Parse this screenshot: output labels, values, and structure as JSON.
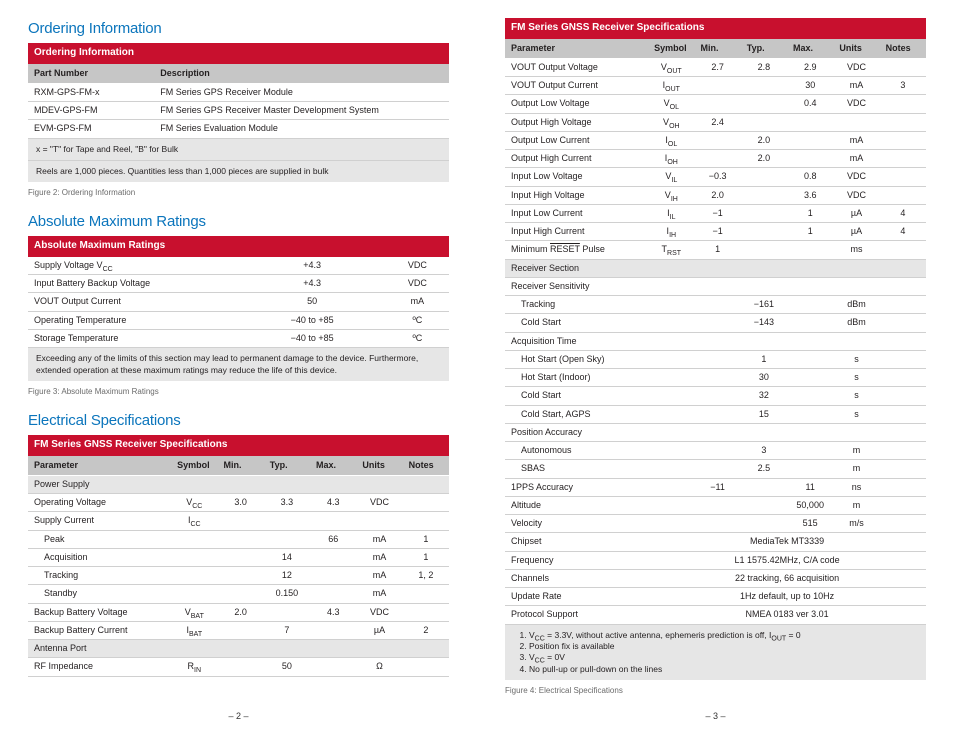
{
  "colors": {
    "heading": "#0b75bc",
    "banner_bg": "#c8102e",
    "banner_fg": "#ffffff",
    "headrow_bg": "#c6c6c6",
    "section_bg": "#e6e6e6",
    "row_border": "#d0d0d0",
    "text": "#231f20",
    "figcap": "#6b6b6b"
  },
  "typography": {
    "heading_fontsize": 15,
    "banner_fontsize": 10,
    "body_fontsize": 9,
    "figcap_fontsize": 8
  },
  "page2": {
    "ordering": {
      "heading": "Ordering Information",
      "banner": "Ordering Information",
      "columns": [
        "Part Number",
        "Description"
      ],
      "col_widths_pct": [
        30,
        70
      ],
      "rows": [
        [
          "RXM-GPS-FM-x",
          "FM Series GPS Receiver Module"
        ],
        [
          "MDEV-GPS-FM",
          "FM Series GPS Receiver Master Development System"
        ],
        [
          "EVM-GPS-FM",
          "FM Series Evaluation Module"
        ]
      ],
      "notes": [
        "x = \"T\" for Tape and Reel, \"B\" for Bulk",
        "Reels are 1,000 pieces. Quantities less than 1,000 pieces are supplied in bulk"
      ],
      "caption": "Figure 2: Ordering Information"
    },
    "amr": {
      "heading": "Absolute Maximum Ratings",
      "banner": "Absolute Maximum Ratings",
      "col_widths_pct": [
        50,
        35,
        15
      ],
      "rows": [
        {
          "p": "Supply Voltage V",
          "sub": "CC",
          "v": "+4.3",
          "u": "VDC"
        },
        {
          "p": "Input Battery Backup Voltage",
          "sub": "",
          "v": "+4.3",
          "u": "VDC"
        },
        {
          "p": "VOUT Output Current",
          "sub": "",
          "v": "50",
          "u": "mA"
        },
        {
          "p": "Operating Temperature",
          "sub": "",
          "v": "−40 to +85",
          "u": "ºC"
        },
        {
          "p": "Storage Temperature",
          "sub": "",
          "v": "−40 to +85",
          "u": "ºC"
        }
      ],
      "note": "Exceeding any of the limits of this section may lead to permanent damage to the device. Furthermore, extended operation at these maximum ratings may reduce the life of this device.",
      "caption": "Figure 3: Absolute Maximum Ratings"
    },
    "elec": {
      "heading": "Electrical Specifications",
      "banner": "FM Series GNSS Receiver Specifications",
      "columns": [
        "Parameter",
        "Symbol",
        "Min.",
        "Typ.",
        "Max.",
        "Units",
        "Notes"
      ],
      "col_widths_pct": [
        34,
        11,
        11,
        11,
        11,
        11,
        11
      ],
      "rows": [
        {
          "type": "section",
          "p": "Power Supply"
        },
        {
          "p": "Operating Voltage",
          "sym": "V",
          "sub": "CC",
          "min": "3.0",
          "typ": "3.3",
          "max": "4.3",
          "u": "VDC",
          "n": ""
        },
        {
          "p": "Supply Current",
          "sym": "I",
          "sub": "CC",
          "min": "",
          "typ": "",
          "max": "",
          "u": "",
          "n": ""
        },
        {
          "p": "Peak",
          "indent": 1,
          "sym": "",
          "sub": "",
          "min": "",
          "typ": "",
          "max": "66",
          "u": "mA",
          "n": "1"
        },
        {
          "p": "Acquisition",
          "indent": 1,
          "sym": "",
          "sub": "",
          "min": "",
          "typ": "14",
          "max": "",
          "u": "mA",
          "n": "1"
        },
        {
          "p": "Tracking",
          "indent": 1,
          "sym": "",
          "sub": "",
          "min": "",
          "typ": "12",
          "max": "",
          "u": "mA",
          "n": "1, 2"
        },
        {
          "p": "Standby",
          "indent": 1,
          "sym": "",
          "sub": "",
          "min": "",
          "typ": "0.150",
          "max": "",
          "u": "mA",
          "n": ""
        },
        {
          "p": "Backup Battery Voltage",
          "sym": "V",
          "sub": "BAT",
          "min": "2.0",
          "typ": "",
          "max": "4.3",
          "u": "VDC",
          "n": ""
        },
        {
          "p": "Backup Battery Current",
          "sym": "I",
          "sub": "BAT",
          "min": "",
          "typ": "7",
          "max": "",
          "u": "µA",
          "n": "2"
        },
        {
          "type": "section",
          "p": "Antenna Port"
        },
        {
          "p": "RF Impedance",
          "sym": "R",
          "sub": "IN",
          "min": "",
          "typ": "50",
          "max": "",
          "u": "Ω",
          "n": ""
        }
      ]
    },
    "pagenum": "– 2 –"
  },
  "page3": {
    "elec2": {
      "banner": "FM Series GNSS Receiver Specifications",
      "columns": [
        "Parameter",
        "Symbol",
        "Min.",
        "Typ.",
        "Max.",
        "Units",
        "Notes"
      ],
      "col_widths_pct": [
        34,
        11,
        11,
        11,
        11,
        11,
        11
      ],
      "rows": [
        {
          "p": "VOUT Output Voltage",
          "sym": "V",
          "sub": "OUT",
          "min": "2.7",
          "typ": "2.8",
          "max": "2.9",
          "u": "VDC",
          "n": ""
        },
        {
          "p": "VOUT Output Current",
          "sym": "I",
          "sub": "OUT",
          "min": "",
          "typ": "",
          "max": "30",
          "u": "mA",
          "n": "3"
        },
        {
          "p": "Output Low Voltage",
          "sym": "V",
          "sub": "OL",
          "min": "",
          "typ": "",
          "max": "0.4",
          "u": "VDC",
          "n": ""
        },
        {
          "p": "Output High Voltage",
          "sym": "V",
          "sub": "OH",
          "min": "2.4",
          "typ": "",
          "max": "",
          "u": "",
          "n": ""
        },
        {
          "p": "Output Low Current",
          "sym": "I",
          "sub": "OL",
          "min": "",
          "typ": "2.0",
          "max": "",
          "u": "mA",
          "n": ""
        },
        {
          "p": "Output High Current",
          "sym": "I",
          "sub": "OH",
          "min": "",
          "typ": "2.0",
          "max": "",
          "u": "mA",
          "n": ""
        },
        {
          "p": "Input Low Voltage",
          "sym": "V",
          "sub": "IL",
          "min": "−0.3",
          "typ": "",
          "max": "0.8",
          "u": "VDC",
          "n": ""
        },
        {
          "p": "Input High Voltage",
          "sym": "V",
          "sub": "IH",
          "min": "2.0",
          "typ": "",
          "max": "3.6",
          "u": "VDC",
          "n": ""
        },
        {
          "p": "Input Low Current",
          "sym": "I",
          "sub": "IL",
          "min": "−1",
          "typ": "",
          "max": "1",
          "u": "µA",
          "n": "4"
        },
        {
          "p": "Input High Current",
          "sym": "I",
          "sub": "IH",
          "min": "−1",
          "typ": "",
          "max": "1",
          "u": "µA",
          "n": "4"
        },
        {
          "p": "Minimum RESET Pulse",
          "overline": true,
          "sym": "T",
          "sub": "RST",
          "min": "1",
          "typ": "",
          "max": "",
          "u": "ms",
          "n": ""
        },
        {
          "type": "section",
          "p": "Receiver Section"
        },
        {
          "p": "Receiver Sensitivity",
          "sym": "",
          "sub": "",
          "min": "",
          "typ": "",
          "max": "",
          "u": "",
          "n": ""
        },
        {
          "p": "Tracking",
          "indent": 1,
          "sym": "",
          "sub": "",
          "min": "",
          "typ": "−161",
          "max": "",
          "u": "dBm",
          "n": ""
        },
        {
          "p": "Cold Start",
          "indent": 1,
          "sym": "",
          "sub": "",
          "min": "",
          "typ": "−143",
          "max": "",
          "u": "dBm",
          "n": ""
        },
        {
          "p": "Acquisition Time",
          "sym": "",
          "sub": "",
          "min": "",
          "typ": "",
          "max": "",
          "u": "",
          "n": ""
        },
        {
          "p": "Hot Start (Open Sky)",
          "indent": 1,
          "sym": "",
          "sub": "",
          "min": "",
          "typ": "1",
          "max": "",
          "u": "s",
          "n": ""
        },
        {
          "p": "Hot Start (Indoor)",
          "indent": 1,
          "sym": "",
          "sub": "",
          "min": "",
          "typ": "30",
          "max": "",
          "u": "s",
          "n": ""
        },
        {
          "p": "Cold Start",
          "indent": 1,
          "sym": "",
          "sub": "",
          "min": "",
          "typ": "32",
          "max": "",
          "u": "s",
          "n": ""
        },
        {
          "p": "Cold Start, AGPS",
          "indent": 1,
          "sym": "",
          "sub": "",
          "min": "",
          "typ": "15",
          "max": "",
          "u": "s",
          "n": ""
        },
        {
          "p": "Position Accuracy",
          "sym": "",
          "sub": "",
          "min": "",
          "typ": "",
          "max": "",
          "u": "",
          "n": ""
        },
        {
          "p": "Autonomous",
          "indent": 1,
          "sym": "",
          "sub": "",
          "min": "",
          "typ": "3",
          "max": "",
          "u": "m",
          "n": ""
        },
        {
          "p": "SBAS",
          "indent": 1,
          "sym": "",
          "sub": "",
          "min": "",
          "typ": "2.5",
          "max": "",
          "u": "m",
          "n": ""
        },
        {
          "p": "1PPS Accuracy",
          "sym": "",
          "sub": "",
          "min": "−11",
          "typ": "",
          "max": "11",
          "u": "ns",
          "n": ""
        },
        {
          "p": "Altitude",
          "sym": "",
          "sub": "",
          "min": "",
          "typ": "",
          "max": "50,000",
          "u": "m",
          "n": ""
        },
        {
          "p": "Velocity",
          "sym": "",
          "sub": "",
          "min": "",
          "typ": "",
          "max": "515",
          "u": "m/s",
          "n": ""
        },
        {
          "p": "Chipset",
          "span": true,
          "spantext": "MediaTek MT3339"
        },
        {
          "p": "Frequency",
          "span": true,
          "spantext": "L1 1575.42MHz, C/A code"
        },
        {
          "p": "Channels",
          "span": true,
          "spantext": "22 tracking, 66 acquisition"
        },
        {
          "p": "Update Rate",
          "span": true,
          "spantext": "1Hz default, up to 10Hz"
        },
        {
          "p": "Protocol Support",
          "span": true,
          "spantext": "NMEA 0183 ver 3.01"
        }
      ],
      "footnotes": [
        "V_CC = 3.3V, without active antenna, ephemeris prediction is off, I_OUT = 0",
        "Position fix is available",
        "V_CC = 0V",
        "No pull-up or pull-down on the lines"
      ],
      "caption": "Figure 4: Electrical Specifications"
    },
    "pagenum": "– 3 –"
  }
}
